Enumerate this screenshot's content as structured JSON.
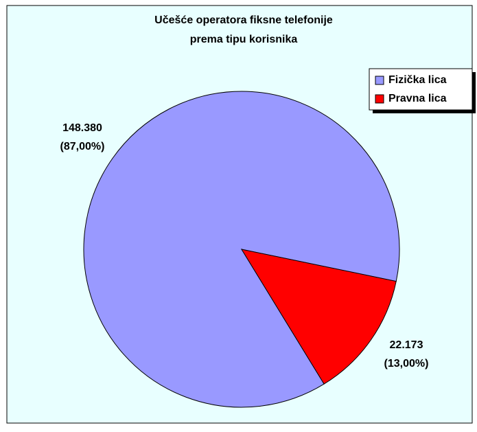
{
  "chart_data": {
    "type": "pie",
    "title": "Učešće operatora fiksne telefonije",
    "subtitle": "prema tipu korisnika",
    "categories": [
      "Fizička lica",
      "Pravna lica"
    ],
    "values": [
      148380,
      22173
    ],
    "value_labels": [
      "148.380",
      "22.173"
    ],
    "percent_labels": [
      "(87,00%)",
      "(13,00%)"
    ],
    "colors": [
      "#9999ff",
      "#ff0000"
    ],
    "legend": "top-right"
  }
}
